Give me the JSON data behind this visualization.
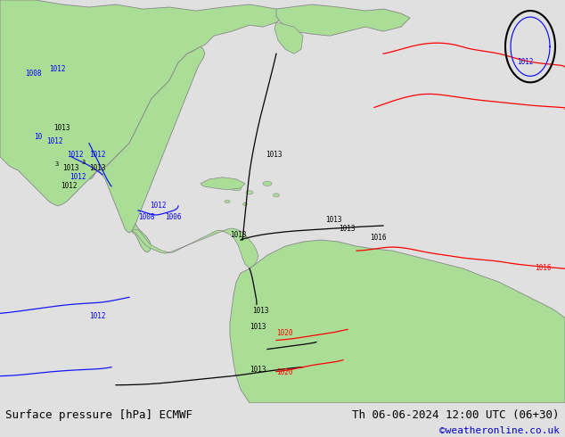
{
  "figsize": [
    6.34,
    4.9
  ],
  "dpi": 100,
  "bg_color": "#e0e0e0",
  "label_left": "Surface pressure [hPa] ECMWF",
  "label_right": "Th 06-06-2024 12:00 UTC (06+30)",
  "label_credit": "©weatheronline.co.uk",
  "label_fontsize": 9,
  "credit_color": "#0000cc",
  "label_color": "#000000",
  "bottom_bar_height": 0.078,
  "land_color": "#aade96",
  "ocean_color": "#d4d4d4",
  "line_color_blue": "#0000ff",
  "line_color_black": "#000000",
  "line_color_red": "#ff0000",
  "coast_color": "#888888"
}
